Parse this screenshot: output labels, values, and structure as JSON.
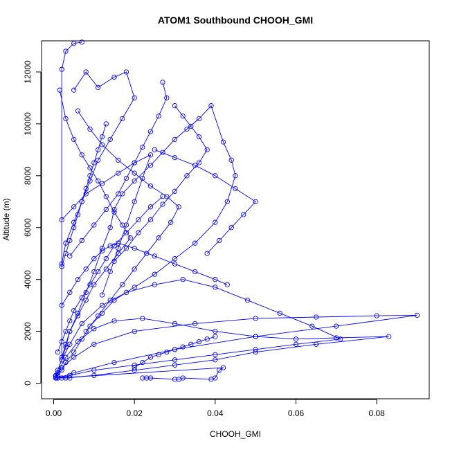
{
  "chart_data": {
    "type": "scatter",
    "title": "ATOM1 Southbound CHOOH_GMI",
    "xlabel": "CHOOH_GMI",
    "ylabel": "Altitude (m)",
    "xlim": [
      -0.003,
      0.093
    ],
    "ylim": [
      -600,
      13200
    ],
    "xticks": [
      0.0,
      0.02,
      0.04,
      0.06,
      0.08
    ],
    "xtick_labels": [
      "0.00",
      "0.02",
      "0.04",
      "0.06",
      "0.08"
    ],
    "yticks": [
      0,
      2000,
      4000,
      6000,
      8000,
      10000,
      12000
    ],
    "ytick_labels": [
      "0",
      "2000",
      "4000",
      "6000",
      "8000",
      "10000",
      "12000"
    ],
    "grid": false,
    "color": "#0000ff",
    "series": [
      {
        "x": [
          0.0005,
          0.001,
          0.002,
          0.003,
          0.004,
          0.006,
          0.008,
          0.01,
          0.012,
          0.014,
          0.015,
          0.017,
          0.02,
          0.024,
          0.027,
          0.03,
          0.033,
          0.036,
          0.039,
          0.042,
          0.044,
          0.045,
          0.043,
          0.04,
          0.035,
          0.03,
          0.025,
          0.02,
          0.015,
          0.012,
          0.009,
          0.007,
          0.005,
          0.003,
          0.002,
          0.001,
          0.0006
        ],
        "y": [
          200,
          500,
          900,
          1400,
          2000,
          2700,
          3500,
          4300,
          5200,
          6000,
          6700,
          7300,
          7800,
          8400,
          8900,
          9400,
          9800,
          10200,
          10700,
          9300,
          8600,
          8000,
          7000,
          6200,
          5400,
          4800,
          4200,
          3700,
          3200,
          2700,
          2200,
          1700,
          1200,
          800,
          500,
          300,
          200
        ]
      },
      {
        "x": [
          0.0005,
          0.002,
          0.004,
          0.007,
          0.012,
          0.018,
          0.025,
          0.032,
          0.04,
          0.048,
          0.056,
          0.064,
          0.071,
          0.06,
          0.05,
          0.04,
          0.03,
          0.02,
          0.01,
          0.004,
          0.001
        ],
        "y": [
          300,
          900,
          1500,
          2300,
          3000,
          3500,
          3800,
          4000,
          3700,
          3200,
          2700,
          2200,
          1700,
          1500,
          1300,
          1100,
          900,
          700,
          500,
          300,
          200
        ]
      },
      {
        "x": [
          0.0005,
          0.002,
          0.005,
          0.01,
          0.02,
          0.035,
          0.05,
          0.065,
          0.08,
          0.09,
          0.07,
          0.05,
          0.03,
          0.015,
          0.005,
          0.001
        ],
        "y": [
          250,
          600,
          1000,
          1500,
          2000,
          2300,
          2500,
          2550,
          2600,
          2620,
          2200,
          1800,
          1300,
          800,
          400,
          200
        ]
      },
      {
        "x": [
          0.001,
          0.003,
          0.006,
          0.01,
          0.015,
          0.022,
          0.03,
          0.04,
          0.05,
          0.06,
          0.07,
          0.083,
          0.065,
          0.05,
          0.04,
          0.03,
          0.02,
          0.01,
          0.003
        ],
        "y": [
          400,
          1000,
          1600,
          2100,
          2400,
          2500,
          2300,
          2000,
          1800,
          1700,
          1750,
          1800,
          1500,
          1200,
          900,
          700,
          500,
          300,
          200
        ]
      },
      {
        "x": [
          0.0015,
          0.003,
          0.005,
          0.007,
          0.009,
          0.011,
          0.013,
          0.015,
          0.017,
          0.019,
          0.016,
          0.013,
          0.01,
          0.008,
          0.006,
          0.004,
          0.003,
          0.002,
          0.002,
          0.003,
          0.005,
          0.007
        ],
        "y": [
          11300,
          10200,
          9400,
          8800,
          8300,
          7800,
          7200,
          6600,
          6100,
          5600,
          5000,
          4400,
          3800,
          3200,
          2600,
          2000,
          1500,
          1000,
          12100,
          12800,
          13100,
          13150
        ]
      },
      {
        "x": [
          0.005,
          0.008,
          0.011,
          0.015,
          0.018,
          0.02,
          0.017,
          0.014,
          0.011,
          0.009,
          0.007,
          0.005,
          0.003,
          0.002
        ],
        "y": [
          11300,
          12000,
          11400,
          11800,
          12000,
          11000,
          10200,
          9400,
          8600,
          7800,
          7000,
          6200,
          5400,
          4600
        ]
      },
      {
        "x": [
          0.006,
          0.009,
          0.012,
          0.016,
          0.02,
          0.024,
          0.028,
          0.031,
          0.029,
          0.026,
          0.023,
          0.02,
          0.017,
          0.014,
          0.011,
          0.008
        ],
        "y": [
          10500,
          9800,
          9200,
          8600,
          8100,
          7600,
          7200,
          6800,
          6200,
          5600,
          5000,
          4400,
          3800,
          3200,
          2600,
          2000
        ]
      },
      {
        "x": [
          0.002,
          0.004,
          0.006,
          0.008,
          0.01,
          0.012,
          0.014,
          0.016,
          0.02,
          0.025,
          0.03,
          0.035,
          0.04,
          0.043
        ],
        "y": [
          3000,
          3500,
          4000,
          4400,
          4800,
          5100,
          5300,
          5400,
          5200,
          4900,
          4600,
          4300,
          4000,
          3800
        ]
      },
      {
        "x": [
          0.027,
          0.028,
          0.026,
          0.024,
          0.022,
          0.02,
          0.018,
          0.016,
          0.013,
          0.01,
          0.007,
          0.004
        ],
        "y": [
          11600,
          11000,
          10300,
          9700,
          9100,
          8500,
          7900,
          7300,
          6700,
          6100,
          5500,
          4900
        ]
      },
      {
        "x": [
          0.03,
          0.032,
          0.034,
          0.036,
          0.038,
          0.036,
          0.033,
          0.03,
          0.027,
          0.024,
          0.021,
          0.018,
          0.015
        ],
        "y": [
          10700,
          10300,
          9900,
          9500,
          9000,
          8500,
          8000,
          7400,
          6900,
          6300,
          5800,
          5200,
          4700
        ]
      },
      {
        "x": [
          0.002,
          0.005,
          0.008,
          0.012,
          0.016,
          0.02,
          0.024,
          0.022,
          0.02,
          0.018,
          0.016,
          0.014,
          0.012
        ],
        "y": [
          6300,
          6800,
          7300,
          7700,
          8100,
          8500,
          8800,
          7900,
          7000,
          6100,
          5200,
          4300,
          3400
        ]
      },
      {
        "x": [
          0.001,
          0.002,
          0.003,
          0.004,
          0.005,
          0.007,
          0.009,
          0.011,
          0.013,
          0.015,
          0.018,
          0.021,
          0.024,
          0.027
        ],
        "y": [
          1200,
          1600,
          2000,
          2400,
          2800,
          3300,
          3800,
          4300,
          4800,
          5300,
          5800,
          6300,
          6800,
          7200
        ]
      },
      {
        "x": [
          0.02,
          0.022,
          0.024,
          0.026,
          0.028,
          0.03,
          0.032,
          0.034,
          0.036,
          0.038,
          0.04
        ],
        "y": [
          600,
          800,
          1000,
          1100,
          1200,
          1300,
          1400,
          1500,
          1600,
          1700,
          1800
        ]
      },
      {
        "x": [
          0.022,
          0.023,
          0.024,
          0.03,
          0.031,
          0.032,
          0.039,
          0.04,
          0.041,
          0.042,
          0.001,
          0.002,
          0.003,
          0.004
        ],
        "y": [
          200,
          200,
          200,
          150,
          150,
          200,
          150,
          200,
          500,
          600,
          200,
          200,
          200,
          200
        ]
      },
      {
        "x": [
          0.002,
          0.003,
          0.004,
          0.005,
          0.006,
          0.007,
          0.008,
          0.009,
          0.01,
          0.011,
          0.012,
          0.013
        ],
        "y": [
          4500,
          5000,
          5500,
          6000,
          6500,
          7000,
          7500,
          8000,
          8500,
          9000,
          9500,
          10000
        ]
      },
      {
        "x": [
          0.025,
          0.03,
          0.035,
          0.04,
          0.045,
          0.05,
          0.047,
          0.044,
          0.041,
          0.038
        ],
        "y": [
          9000,
          8700,
          8400,
          8000,
          7500,
          7000,
          6500,
          6000,
          5500,
          5000
        ]
      }
    ]
  }
}
